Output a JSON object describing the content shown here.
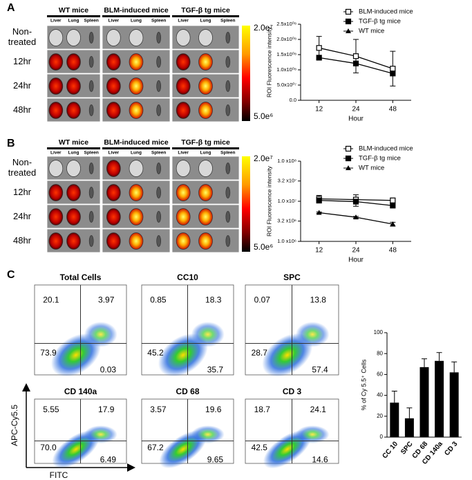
{
  "panel_letters": [
    "A",
    "B",
    "C"
  ],
  "imaging": [
    {
      "groups": [
        "WT mice",
        "BLM-induced mice",
        "TGF-β tg mice"
      ],
      "organs": [
        "Liver",
        "Lung",
        "Spleen"
      ],
      "rows": [
        "Non-treated",
        "12hr",
        "24hr",
        "48hr"
      ],
      "colorbar": [
        "2.0e⁷",
        "5.0e⁶"
      ]
    },
    {
      "groups": [
        "WT mice",
        "BLM-induced mice",
        "TGF-β tg mice"
      ],
      "organs": [
        "Liver",
        "Lung",
        "Spleen"
      ],
      "rows": [
        "Non-treated",
        "12hr",
        "24hr",
        "48hr"
      ],
      "colorbar": [
        "2.0e⁷",
        "5.0e⁶"
      ]
    }
  ],
  "flow": {
    "plots": [
      {
        "title": "Total Cells",
        "quadrants": [
          "20.1",
          "3.97",
          "73.9",
          "0.03"
        ]
      },
      {
        "title": "CC10",
        "quadrants": [
          "0.85",
          "18.3",
          "45.2",
          "35.7"
        ]
      },
      {
        "title": "SPC",
        "quadrants": [
          "0.07",
          "13.8",
          "28.7",
          "57.4"
        ]
      },
      {
        "title": "CD 140a",
        "quadrants": [
          "5.55",
          "17.9",
          "70.0",
          "6.49"
        ]
      },
      {
        "title": "CD 68",
        "quadrants": [
          "3.57",
          "19.6",
          "67.2",
          "9.65"
        ]
      },
      {
        "title": "CD 3",
        "quadrants": [
          "18.7",
          "24.1",
          "42.5",
          "14.6"
        ]
      }
    ],
    "y_label": "APC-Cy5.5",
    "x_label": "FITC"
  },
  "chart_data": [
    {
      "type": "line",
      "categories": [
        "12",
        "24",
        "48"
      ],
      "x_label": "Hour",
      "y_label": "ROI Fluorescence intensity",
      "legend": "top",
      "ylim": [
        0,
        250000000
      ],
      "yticks": [
        {
          "value": 0,
          "label": "0.0"
        },
        {
          "value": 50000000,
          "label": "5.0x10⁰⁷"
        },
        {
          "value": 100000000,
          "label": "1.0x10⁰⁸"
        },
        {
          "value": 150000000,
          "label": "1.5x10⁰⁸"
        },
        {
          "value": 200000000,
          "label": "2.0x10⁰⁸"
        },
        {
          "value": 250000000,
          "label": "2.5x10⁰⁸"
        }
      ],
      "series": [
        {
          "name": "BLM-induced mice",
          "color": "#000000",
          "marker": "open-square",
          "values": [
            172000000,
            145000000,
            104000000
          ],
          "errors": [
            38000000,
            55000000,
            57000000
          ]
        },
        {
          "name": "TGF-β tg mice",
          "color": "#000000",
          "marker": "square",
          "values": [
            140000000,
            121000000,
            88000000
          ]
        },
        {
          "name": "WT mice",
          "color": "#000000",
          "marker": "triangle",
          "values": [
            null,
            null,
            null
          ]
        }
      ]
    },
    {
      "type": "line",
      "categories": [
        "12",
        "24",
        "48"
      ],
      "x_label": "Hour",
      "y_label": "ROI Fluorescence intensity",
      "legend": "top",
      "log": true,
      "ylim": [
        1000000,
        100000000
      ],
      "yticks": [
        {
          "value": 1000000,
          "label": "1.0 x10⁶"
        },
        {
          "value": 3200000,
          "label": "3.2 x10⁶"
        },
        {
          "value": 10000000,
          "label": "1.0 x10⁷"
        },
        {
          "value": 32000000,
          "label": "3.2 x10⁷"
        },
        {
          "value": 100000000,
          "label": "1.0 x10⁸"
        }
      ],
      "series": [
        {
          "name": "BLM-induced mice",
          "color": "#000000",
          "marker": "open-square",
          "values": [
            11500000,
            11000000,
            10500000
          ],
          "errors": [
            2500000,
            3500000,
            1500000
          ]
        },
        {
          "name": "TGF-β tg mice",
          "color": "#000000",
          "marker": "square",
          "values": [
            10500000,
            9800000,
            7800000
          ]
        },
        {
          "name": "WT mice",
          "color": "#000000",
          "marker": "triangle",
          "values": [
            5200000,
            4000000,
            2700000
          ],
          "errors": [
            200000,
            200000,
            300000
          ]
        }
      ]
    },
    {
      "type": "bar",
      "categories": [
        "CC 10",
        "SPC",
        "CD 68",
        "CD 140a",
        "CD 3"
      ],
      "values": [
        33,
        18,
        67,
        73,
        62
      ],
      "errors": [
        11,
        10,
        8,
        8,
        10
      ],
      "color": "#000000",
      "y_label": "% of Cy 5.5⁺ Cells",
      "ylim": [
        0,
        100
      ],
      "yticks": [
        0,
        20,
        40,
        60,
        80,
        100
      ]
    }
  ]
}
